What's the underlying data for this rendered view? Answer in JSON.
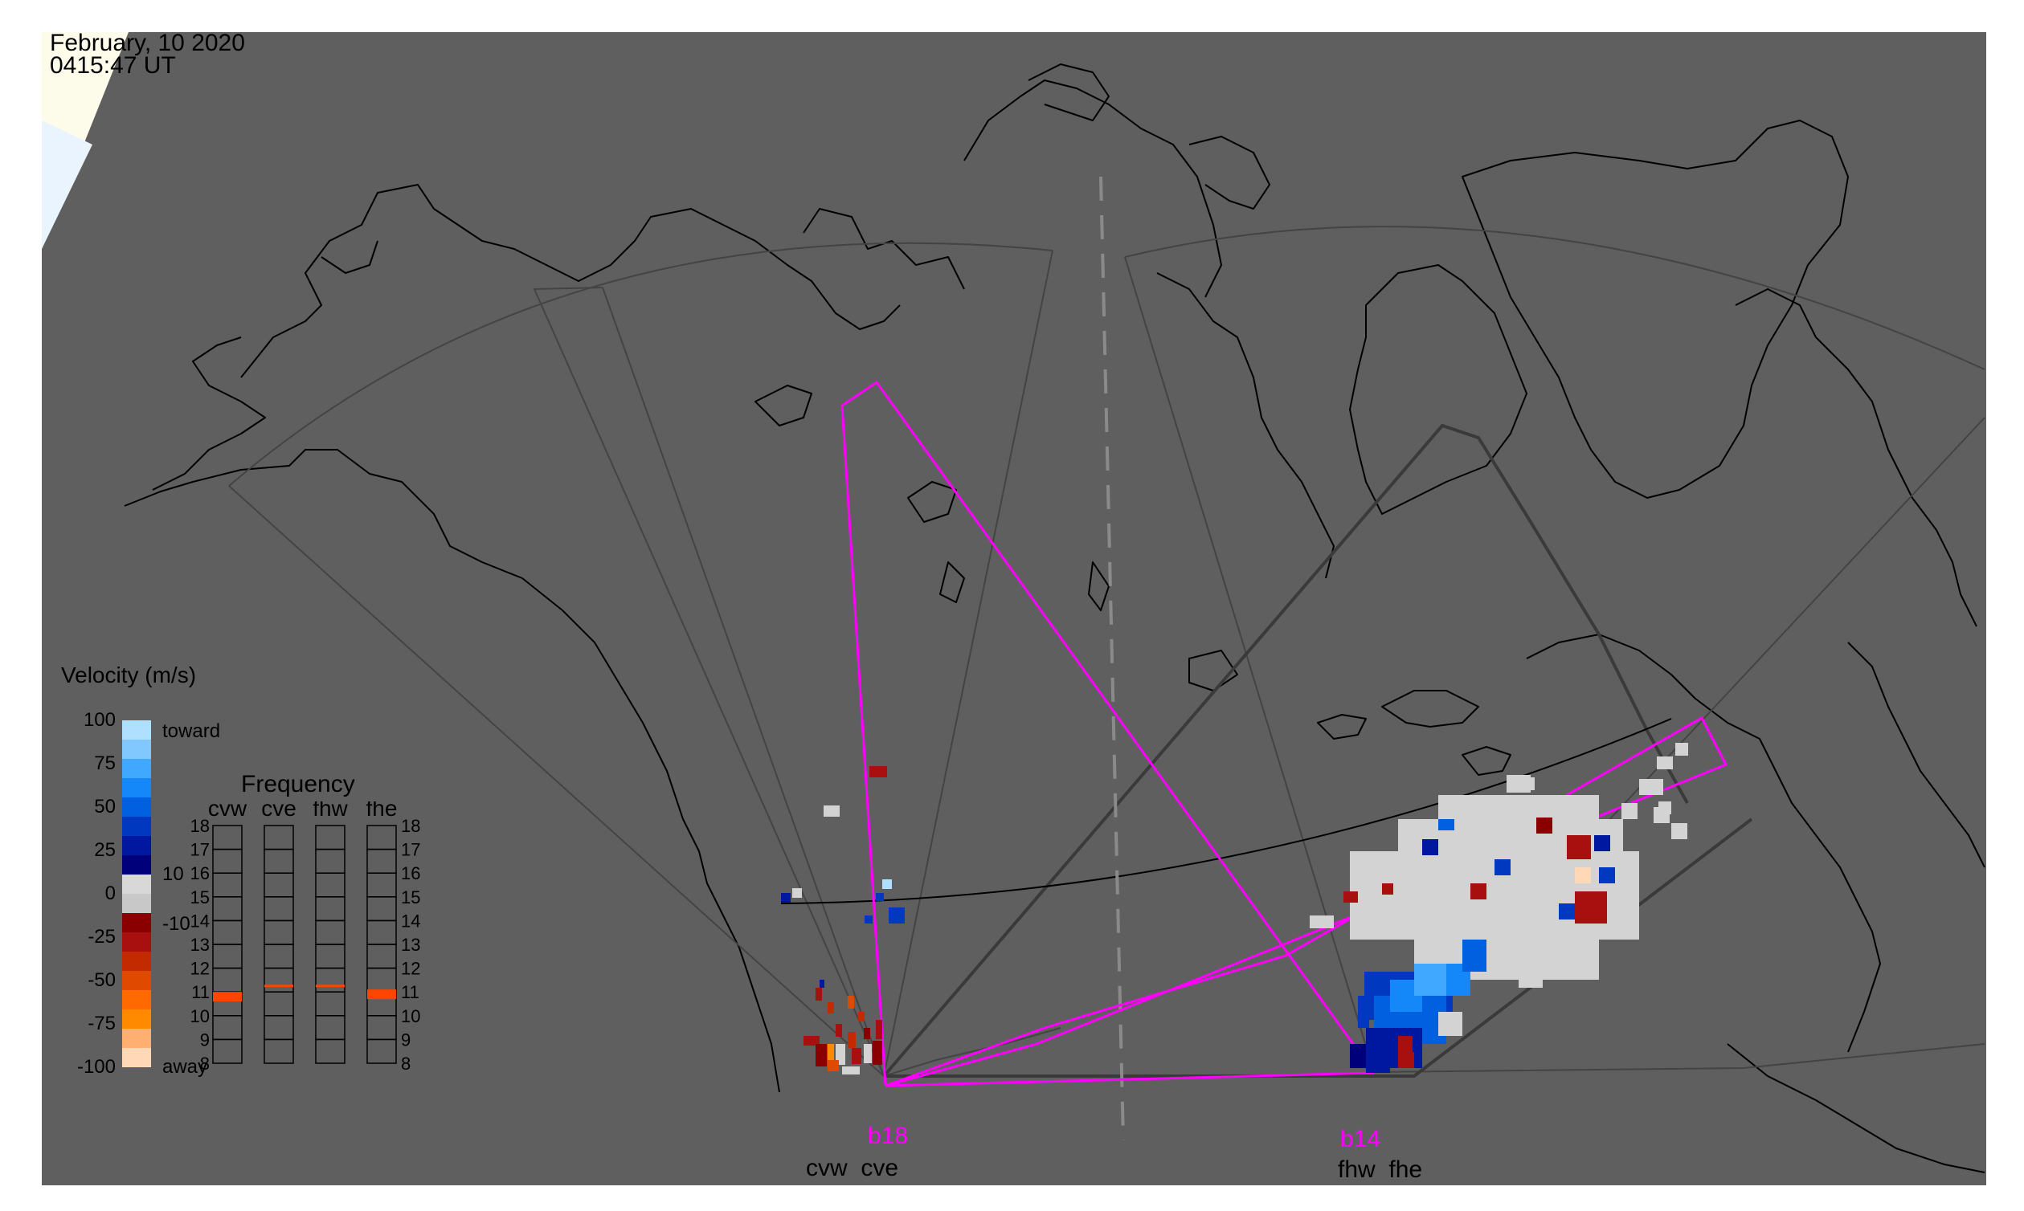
{
  "timestamp": {
    "date": "February, 10 2020",
    "time": "0415:47 UT"
  },
  "velocity_scale": {
    "title": "Velocity (m/s)",
    "tick_labels": [
      "100",
      "75",
      "50",
      "25",
      "0",
      "-25",
      "-50",
      "-75",
      "-100"
    ],
    "inner_labels": [
      "10",
      "-10"
    ],
    "toward_label": "toward",
    "away_label": "away",
    "colors": [
      "#ffd8b8",
      "#ffb070",
      "#ff8a00",
      "#ff6a00",
      "#e04a00",
      "#c42a00",
      "#a81010",
      "#8a0000",
      "#c8c8c8",
      "#d8d8d8",
      "#00007a",
      "#0018a0",
      "#0038c0",
      "#0060e0",
      "#1488f8",
      "#40a8ff",
      "#80c8ff",
      "#b0e0ff"
    ]
  },
  "frequency_panel": {
    "title": "Frequency",
    "columns": [
      "cvw",
      "cve",
      "fhw",
      "fhe"
    ],
    "ticks": [
      "18",
      "17",
      "16",
      "15",
      "14",
      "13",
      "12",
      "11",
      "10",
      "9",
      "8"
    ],
    "active_mhz": [
      10.8,
      11.1,
      11.1,
      10.9
    ],
    "active_color": "#ff4400"
  },
  "radars": [
    {
      "codes": "cvw  cve",
      "beam": "b18"
    },
    {
      "codes": "fhw  fhe",
      "beam": "b14"
    }
  ],
  "colors": {
    "background": "#5f5f5f",
    "coastline": "#000000",
    "fov_outline": "#444444",
    "beam_highlight": "#ff00ff",
    "backscatter_ground": "#d3d3d3",
    "daylight": "#fdfbea",
    "sky_corner": "#eaf4ff"
  }
}
